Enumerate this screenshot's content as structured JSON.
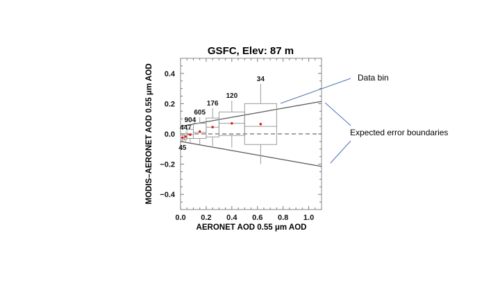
{
  "chart_data": {
    "type": "box",
    "title": "GSFC, Elev: 87 m",
    "xlabel": "AERONET AOD 0.55 μm AOD",
    "ylabel": "MODIS–AERONET AOD 0.55 μm AOD",
    "xlim": [
      0,
      1.1
    ],
    "ylim": [
      -0.5,
      0.5
    ],
    "xticks": [
      "0.0",
      "0.2",
      "0.4",
      "0.6",
      "0.8",
      "1.0"
    ],
    "xtick_values": [
      0,
      0.2,
      0.4,
      0.6,
      0.8,
      1.0
    ],
    "yticks": [
      "0.4",
      "0.2",
      "0.0",
      "−0.2",
      "−0.4"
    ],
    "ytick_values": [
      0.4,
      0.2,
      0,
      -0.2,
      -0.4
    ],
    "bins": [
      {
        "count": "45",
        "x0": 0.0,
        "x1": 0.03,
        "mean": -0.025,
        "median": -0.025,
        "q1": -0.04,
        "q3": -0.01,
        "wmin": -0.05,
        "wmax": 0.0
      },
      {
        "count": "447",
        "x0": 0.03,
        "x1": 0.05,
        "mean": -0.018,
        "median": -0.018,
        "q1": -0.035,
        "q3": 0.0,
        "wmin": -0.05,
        "wmax": 0.01
      },
      {
        "count": "904",
        "x0": 0.05,
        "x1": 0.1,
        "mean": -0.005,
        "median": -0.005,
        "q1": -0.03,
        "q3": 0.03,
        "wmin": -0.06,
        "wmax": 0.06
      },
      {
        "count": "605",
        "x0": 0.1,
        "x1": 0.2,
        "mean": 0.015,
        "median": 0.01,
        "q1": -0.03,
        "q3": 0.07,
        "wmin": -0.07,
        "wmax": 0.11
      },
      {
        "count": "176",
        "x0": 0.2,
        "x1": 0.3,
        "mean": 0.045,
        "median": 0.045,
        "q1": -0.02,
        "q3": 0.105,
        "wmin": -0.08,
        "wmax": 0.17
      },
      {
        "count": "120",
        "x0": 0.3,
        "x1": 0.5,
        "mean": 0.07,
        "median": 0.07,
        "q1": -0.01,
        "q3": 0.145,
        "wmin": -0.09,
        "wmax": 0.22
      },
      {
        "count": "34",
        "x0": 0.5,
        "x1": 0.75,
        "mean": 0.065,
        "median": 0.05,
        "q1": -0.07,
        "q3": 0.2,
        "wmin": -0.2,
        "wmax": 0.33
      }
    ],
    "expected_error": {
      "offset": 0.05,
      "slope": 0.15
    },
    "zero_line": "dashed",
    "colors": {
      "mean": "#e02020",
      "box": "#9a9a9a",
      "ee": "#555555",
      "annotation_line": "#4a72b0"
    }
  },
  "annotations": {
    "data_bin": "Data bin",
    "expected_error": "Expected error boundaries"
  }
}
